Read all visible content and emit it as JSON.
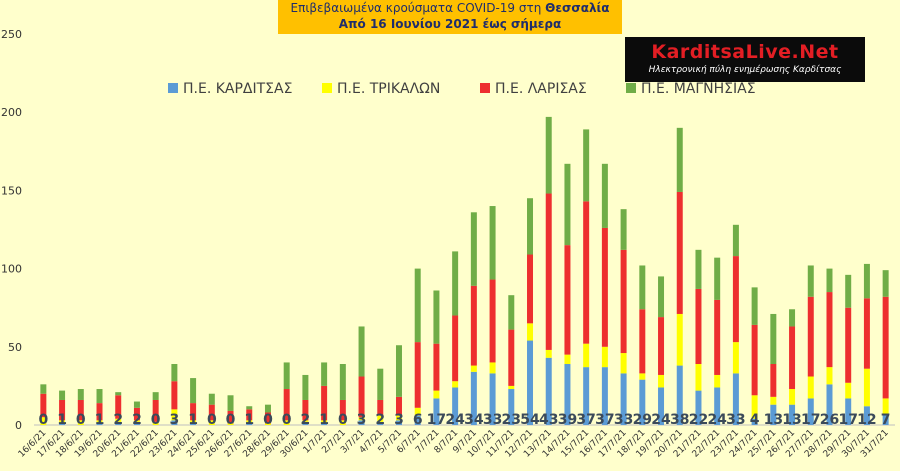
{
  "title": {
    "line1_prefix": "Επιβεβαιωμένα κρούσματα COVID-19 στη",
    "line1_region": "Θεσσαλία",
    "line2": "Από 16 Ιουνίου 2021 έως σήμερα"
  },
  "logo": {
    "name": "KarditsaLive.Net",
    "tagline": "Ηλεκτρονική πύλη ενημέρωσης Καρδίτσας"
  },
  "chart_data": {
    "type": "bar",
    "stacked": true,
    "title": "",
    "xlabel": "",
    "ylabel": "",
    "ylim": [
      0,
      250
    ],
    "yticks": [
      0,
      50,
      100,
      150,
      200,
      250
    ],
    "grid": false,
    "legend_position": "top",
    "categories": [
      "16/6/21",
      "17/6/21",
      "18/6/21",
      "19/6/21",
      "20/6/21",
      "21/6/21",
      "22/6/21",
      "23/6/21",
      "24/6/21",
      "25/6/21",
      "26/6/21",
      "27/6/21",
      "28/6/21",
      "29/6/21",
      "30/6/21",
      "1/7/21",
      "2/7/21",
      "3/7/21",
      "4/7/21",
      "5/7/21",
      "6/7/21",
      "7/7/21",
      "8/7/21",
      "9/7/21",
      "10/7/21",
      "11/7/21",
      "12/7/21",
      "13/7/21",
      "14/7/21",
      "15/7/21",
      "16/7/21",
      "17/7/21",
      "18/7/21",
      "19/7/21",
      "20/7/21",
      "21/7/21",
      "22/7/21",
      "23/7/21",
      "24/7/21",
      "25/7/21",
      "26/7/21",
      "27/7/21",
      "28/7/21",
      "29/7/21",
      "30/7/21",
      "31/7/21"
    ],
    "series": [
      {
        "name": "Π.Ε. ΚΑΡΔΙΤΣΑΣ",
        "color": "#5b9bd5",
        "values": [
          0,
          1,
          0,
          1,
          2,
          2,
          0,
          3,
          1,
          0,
          0,
          1,
          0,
          0,
          2,
          1,
          0,
          3,
          2,
          3,
          6,
          17,
          24,
          34,
          33,
          23,
          54,
          43,
          39,
          37,
          37,
          33,
          29,
          24,
          38,
          22,
          24,
          33,
          4,
          13,
          13,
          17,
          26,
          17,
          12,
          7
        ]
      },
      {
        "name": "Π.Ε. ΤΡΙΚΑΛΩΝ",
        "color": "#ffff00",
        "values": [
          5,
          2,
          3,
          2,
          2,
          1,
          2,
          7,
          2,
          3,
          1,
          2,
          1,
          3,
          1,
          2,
          3,
          2,
          4,
          3,
          5,
          5,
          4,
          4,
          7,
          2,
          11,
          5,
          6,
          15,
          13,
          13,
          4,
          8,
          33,
          17,
          8,
          20,
          15,
          5,
          10,
          14,
          11,
          10,
          24,
          10
        ]
      },
      {
        "name": "Π.Ε. ΛΑΡΙΣΑΣ",
        "color": "#ed2f2f",
        "values": [
          15,
          13,
          13,
          11,
          15,
          8,
          14,
          18,
          11,
          10,
          8,
          7,
          7,
          20,
          13,
          22,
          13,
          26,
          10,
          12,
          42,
          30,
          42,
          51,
          53,
          36,
          44,
          100,
          70,
          91,
          76,
          66,
          41,
          37,
          78,
          48,
          48,
          55,
          45,
          21,
          40,
          51,
          48,
          48,
          45,
          65
        ]
      },
      {
        "name": "Π.Ε. ΜΑΓΝΗΣΙΑΣ",
        "color": "#70ad47",
        "values": [
          6,
          6,
          7,
          9,
          2,
          4,
          5,
          11,
          16,
          7,
          10,
          2,
          5,
          17,
          16,
          15,
          23,
          32,
          20,
          33,
          47,
          34,
          41,
          47,
          47,
          22,
          36,
          49,
          52,
          46,
          41,
          26,
          28,
          26,
          41,
          25,
          27,
          20,
          24,
          32,
          11,
          20,
          15,
          21,
          22,
          17
        ]
      }
    ],
    "data_labels_series": "Π.Ε. ΚΑΡΔΙΤΣΑΣ"
  }
}
